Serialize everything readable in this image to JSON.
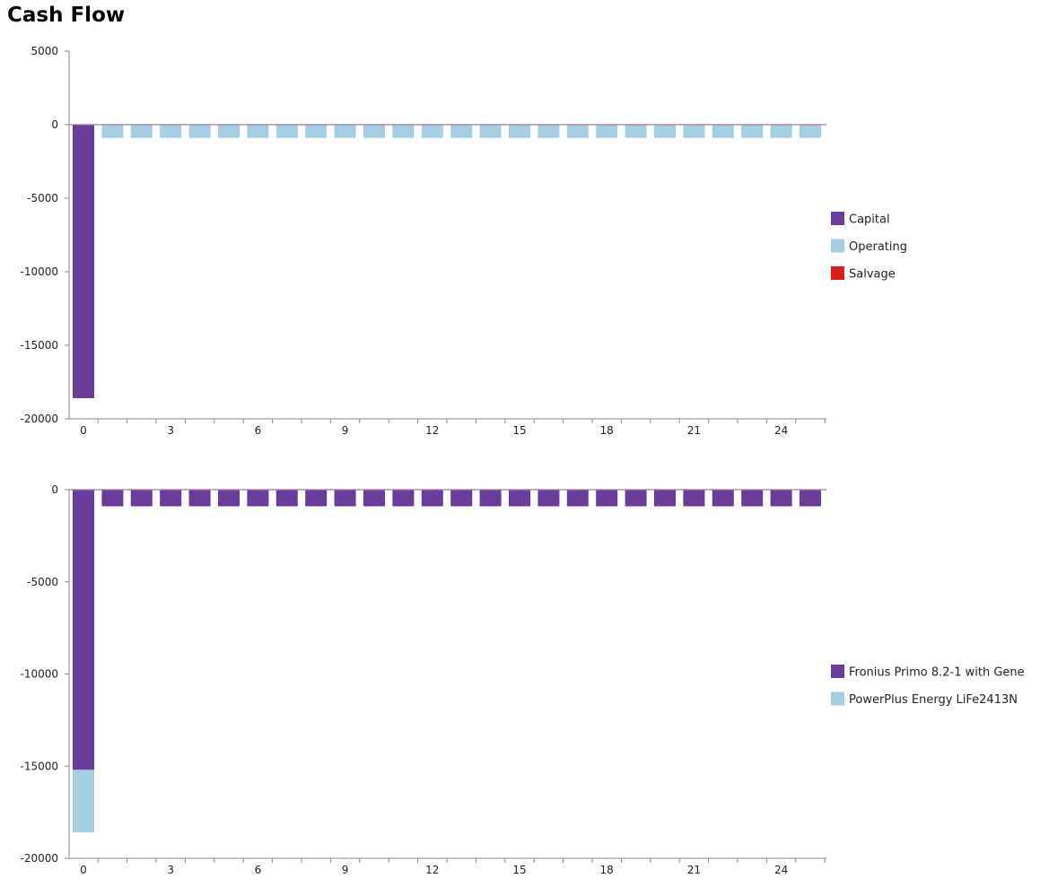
{
  "page": {
    "title": "Cash Flow"
  },
  "colors": {
    "capital": "#6a3d9a",
    "operating": "#a6cee3",
    "salvage": "#e31a1c",
    "axis": "#888888",
    "zero_line": "#a07a9a"
  },
  "chart_data": [
    {
      "type": "bar",
      "stacked": true,
      "title": "",
      "xlabel": "",
      "ylabel": "",
      "x": [
        0,
        1,
        2,
        3,
        4,
        5,
        6,
        7,
        8,
        9,
        10,
        11,
        12,
        13,
        14,
        15,
        16,
        17,
        18,
        19,
        20,
        21,
        22,
        23,
        24,
        25
      ],
      "x_ticks": [
        "0",
        "3",
        "6",
        "9",
        "12",
        "15",
        "18",
        "21",
        "24"
      ],
      "ylim": [
        -20000,
        5000
      ],
      "y_ticks": [
        "5000",
        "0",
        "-5000",
        "-10000",
        "-15000",
        "-20000"
      ],
      "legend_position": "right",
      "series": [
        {
          "name": "Capital",
          "color": "#6a3d9a",
          "values": [
            -18600,
            0,
            0,
            0,
            0,
            0,
            0,
            0,
            0,
            0,
            0,
            0,
            0,
            0,
            0,
            0,
            0,
            0,
            0,
            0,
            0,
            0,
            0,
            0,
            0,
            0
          ]
        },
        {
          "name": "Operating",
          "color": "#a6cee3",
          "values": [
            0,
            -900,
            -900,
            -900,
            -900,
            -900,
            -900,
            -900,
            -900,
            -900,
            -900,
            -900,
            -900,
            -900,
            -900,
            -900,
            -900,
            -900,
            -900,
            -900,
            -900,
            -900,
            -900,
            -900,
            -900,
            -900
          ]
        },
        {
          "name": "Salvage",
          "color": "#e31a1c",
          "values": [
            0,
            0,
            0,
            0,
            0,
            0,
            0,
            0,
            0,
            0,
            0,
            0,
            0,
            0,
            0,
            0,
            0,
            0,
            0,
            0,
            0,
            0,
            0,
            0,
            0,
            0
          ]
        }
      ]
    },
    {
      "type": "bar",
      "stacked": true,
      "title": "",
      "xlabel": "",
      "ylabel": "",
      "x": [
        0,
        1,
        2,
        3,
        4,
        5,
        6,
        7,
        8,
        9,
        10,
        11,
        12,
        13,
        14,
        15,
        16,
        17,
        18,
        19,
        20,
        21,
        22,
        23,
        24,
        25
      ],
      "x_ticks": [
        "0",
        "3",
        "6",
        "9",
        "12",
        "15",
        "18",
        "21",
        "24"
      ],
      "ylim": [
        -20000,
        0
      ],
      "y_ticks": [
        "0",
        "-5000",
        "-10000",
        "-15000",
        "-20000"
      ],
      "legend_position": "right",
      "series": [
        {
          "name": "Fronius Primo 8.2-1 with Gene",
          "color": "#6a3d9a",
          "values": [
            -15200,
            -900,
            -900,
            -900,
            -900,
            -900,
            -900,
            -900,
            -900,
            -900,
            -900,
            -900,
            -900,
            -900,
            -900,
            -900,
            -900,
            -900,
            -900,
            -900,
            -900,
            -900,
            -900,
            -900,
            -900,
            -900
          ]
        },
        {
          "name": "PowerPlus Energy LiFe2413N",
          "color": "#a6cee3",
          "values": [
            -3400,
            0,
            0,
            0,
            0,
            0,
            0,
            0,
            0,
            0,
            0,
            0,
            0,
            0,
            0,
            0,
            0,
            0,
            0,
            0,
            0,
            0,
            0,
            0,
            0,
            0
          ]
        }
      ]
    }
  ]
}
